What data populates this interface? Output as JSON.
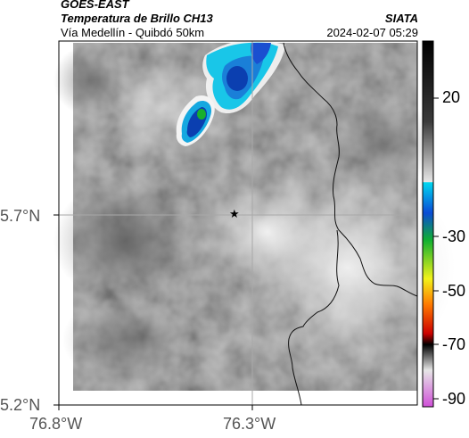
{
  "header": {
    "satellite": "GOES-EAST",
    "product": "Temperatura de Brillo CH13",
    "route": "Vía Medellín - Quibdó 50km",
    "org": "SIATA",
    "datetime": "2024-02-07 05:29"
  },
  "map": {
    "lat_ticks": [
      "5.7°N",
      "5.2°N"
    ],
    "lon_ticks": [
      "76.8°W",
      "76.3°W"
    ],
    "marker_symbol": "★"
  },
  "colorbar": {
    "labels": [
      "20",
      "-30",
      "-50",
      "-70",
      "-90"
    ],
    "colors": {
      "black": "#000000",
      "gray_dark": "#3a3a3a",
      "gray_light": "#e6e6e6",
      "cyan": "#00d8f0",
      "blue": "#0a4bd6",
      "green": "#10b030",
      "yellow": "#f2f21a",
      "orange": "#ff7a00",
      "red": "#cc0000",
      "magenta": "#d050d8"
    }
  }
}
